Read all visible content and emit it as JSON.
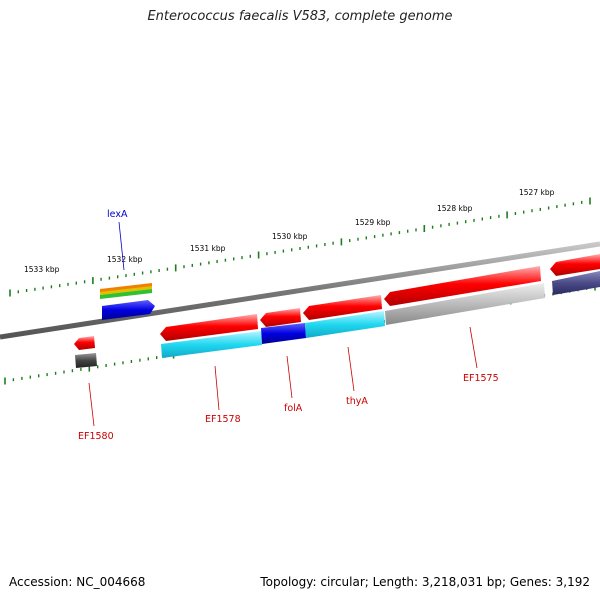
{
  "title": "Enterococcus faecalis V583, complete genome",
  "footer": {
    "accession": "Accession: NC_004668",
    "summary": "Topology: circular; Length: 3,218,031 bp; Genes: 3,192"
  },
  "scale_labels": [
    "1533 kbp",
    "1532 kbp",
    "1531 kbp",
    "1530 kbp",
    "1529 kbp",
    "1528 kbp",
    "1527 kbp"
  ],
  "gene_labels": [
    {
      "text": "lexA",
      "color": "#0000cc"
    },
    {
      "text": "EF1580",
      "color": "#cc0000"
    },
    {
      "text": "EF1578",
      "color": "#cc0000"
    },
    {
      "text": "folA",
      "color": "#cc0000"
    },
    {
      "text": "thyA",
      "color": "#cc0000"
    },
    {
      "text": "EF1575",
      "color": "#cc0000"
    }
  ],
  "colors": {
    "backbone": "#8c8c8c",
    "tick": "#1e7d1e",
    "gene_red": "#e80000",
    "cog_cyan": "#19c8e6",
    "cog_blue": "#0a0adc",
    "cog_gray": "#b4b4b4",
    "cog_dark": "#50508c"
  }
}
